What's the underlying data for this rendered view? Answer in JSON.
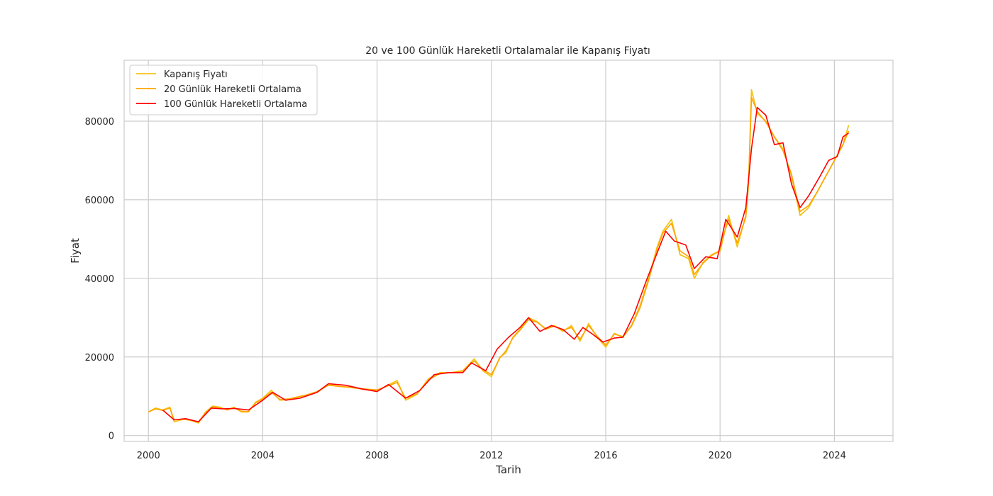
{
  "chart_data": {
    "type": "line",
    "title": "20 ve 100 Günlük Hareketli Ortalamalar ile Kapanış Fiyatı",
    "xlabel": "Tarih",
    "ylabel": "Fiyat",
    "xlim": [
      1999.15,
      2026.05
    ],
    "ylim": [
      -1500,
      95500
    ],
    "x_ticks": [
      2000,
      2004,
      2008,
      2012,
      2016,
      2020,
      2024
    ],
    "y_ticks": [
      0,
      20000,
      40000,
      60000,
      80000
    ],
    "grid": true,
    "legend_position": "upper-left",
    "series": [
      {
        "name": "Kapanış Fiyatı",
        "color": "#f5c518",
        "x": [
          2000.0,
          2000.25,
          2000.5,
          2000.75,
          2000.9,
          2001.25,
          2001.5,
          2001.75,
          2002.0,
          2002.25,
          2002.5,
          2002.75,
          2003.0,
          2003.25,
          2003.5,
          2003.75,
          2004.0,
          2004.3,
          2004.6,
          2004.9,
          2005.25,
          2005.5,
          2005.9,
          2006.3,
          2006.7,
          2007.1,
          2007.5,
          2008.0,
          2008.3,
          2008.7,
          2009.0,
          2009.4,
          2009.8,
          2010.2,
          2010.6,
          2011.0,
          2011.4,
          2011.7,
          2012.0,
          2012.3,
          2012.5,
          2012.75,
          2013.0,
          2013.3,
          2013.6,
          2013.9,
          2014.2,
          2014.5,
          2014.8,
          2015.1,
          2015.4,
          2015.7,
          2016.0,
          2016.3,
          2016.6,
          2016.9,
          2017.2,
          2017.5,
          2017.8,
          2018.0,
          2018.3,
          2018.6,
          2018.9,
          2019.1,
          2019.4,
          2019.7,
          2020.0,
          2020.1,
          2020.3,
          2020.6,
          2020.9,
          2021.0,
          2021.1,
          2021.3,
          2021.6,
          2021.9,
          2022.2,
          2022.5,
          2022.8,
          2023.1,
          2023.4,
          2023.7,
          2024.0,
          2024.3,
          2024.5
        ],
        "y": [
          6000,
          7000,
          6500,
          7200,
          3500,
          4200,
          3800,
          3200,
          6000,
          7500,
          7200,
          6500,
          7200,
          6000,
          6000,
          8500,
          9500,
          11500,
          9000,
          9200,
          9800,
          10200,
          11000,
          13000,
          12500,
          12200,
          11800,
          11500,
          12500,
          14000,
          9000,
          10500,
          14500,
          16000,
          16000,
          16500,
          19500,
          16500,
          15000,
          20000,
          21000,
          25000,
          27000,
          30000,
          29000,
          27000,
          28000,
          26500,
          28000,
          24000,
          28500,
          25000,
          22500,
          26000,
          25000,
          28000,
          33000,
          40000,
          48000,
          52000,
          55000,
          46000,
          45000,
          40000,
          44000,
          46000,
          47000,
          50000,
          56000,
          48000,
          56000,
          65000,
          88000,
          82000,
          80000,
          76000,
          73000,
          66000,
          56000,
          58000,
          62000,
          66000,
          70000,
          74000,
          79000
        ]
      },
      {
        "name": "20 Günlük Hareketli Ortalama",
        "color": "#ffa500",
        "x": [
          2000.0,
          2000.25,
          2000.5,
          2000.75,
          2000.9,
          2001.25,
          2001.5,
          2001.75,
          2002.0,
          2002.25,
          2002.5,
          2002.75,
          2003.0,
          2003.25,
          2003.5,
          2003.75,
          2004.0,
          2004.3,
          2004.6,
          2004.9,
          2005.25,
          2005.5,
          2005.9,
          2006.3,
          2006.7,
          2007.1,
          2007.5,
          2008.0,
          2008.3,
          2008.7,
          2009.0,
          2009.4,
          2009.8,
          2010.2,
          2010.6,
          2011.0,
          2011.4,
          2011.7,
          2012.0,
          2012.3,
          2012.5,
          2012.75,
          2013.0,
          2013.3,
          2013.6,
          2013.9,
          2014.2,
          2014.5,
          2014.8,
          2015.1,
          2015.4,
          2015.7,
          2016.0,
          2016.3,
          2016.6,
          2016.9,
          2017.2,
          2017.5,
          2017.8,
          2018.0,
          2018.3,
          2018.6,
          2018.9,
          2019.1,
          2019.4,
          2019.7,
          2020.0,
          2020.1,
          2020.3,
          2020.6,
          2020.9,
          2021.0,
          2021.1,
          2021.3,
          2021.6,
          2021.9,
          2022.2,
          2022.5,
          2022.8,
          2023.1,
          2023.4,
          2023.7,
          2024.0,
          2024.3,
          2024.5
        ],
        "y": [
          6000,
          6800,
          6400,
          7000,
          4000,
          4100,
          3900,
          3500,
          5800,
          7300,
          7100,
          6600,
          7000,
          6200,
          6100,
          8300,
          9300,
          11000,
          9200,
          9300,
          9900,
          10300,
          11200,
          12800,
          12500,
          12300,
          11900,
          11600,
          12400,
          13500,
          9500,
          10600,
          14200,
          15800,
          16000,
          16400,
          19000,
          16800,
          15500,
          19800,
          21500,
          24800,
          26800,
          29500,
          28800,
          27200,
          27800,
          26800,
          27500,
          24500,
          28000,
          25300,
          23000,
          25800,
          25200,
          27800,
          32500,
          39500,
          47500,
          51500,
          54000,
          47000,
          45500,
          41000,
          43800,
          45800,
          47000,
          50500,
          55000,
          49000,
          55500,
          64000,
          86000,
          82500,
          79800,
          76000,
          72500,
          66500,
          57000,
          58500,
          62000,
          66000,
          70000,
          74000,
          77500
        ]
      },
      {
        "name": "100 Günlük Hareketli Ortalama",
        "color": "#ff0000",
        "x": [
          2000.5,
          2000.9,
          2001.3,
          2001.75,
          2002.2,
          2002.6,
          2003.0,
          2003.5,
          2004.0,
          2004.35,
          2004.8,
          2005.3,
          2005.9,
          2006.3,
          2006.9,
          2007.5,
          2008.0,
          2008.4,
          2009.0,
          2009.5,
          2010.0,
          2010.5,
          2011.0,
          2011.3,
          2011.8,
          2012.2,
          2012.6,
          2013.0,
          2013.3,
          2013.7,
          2014.1,
          2014.5,
          2014.9,
          2015.2,
          2015.5,
          2015.9,
          2016.3,
          2016.6,
          2017.0,
          2017.4,
          2017.8,
          2018.1,
          2018.4,
          2018.8,
          2019.1,
          2019.5,
          2019.9,
          2020.2,
          2020.6,
          2020.9,
          2021.1,
          2021.3,
          2021.6,
          2021.9,
          2022.2,
          2022.5,
          2022.8,
          2023.1,
          2023.5,
          2023.8,
          2024.1,
          2024.3,
          2024.5
        ],
        "y": [
          6500,
          4000,
          4300,
          3500,
          7000,
          6800,
          6900,
          6500,
          9000,
          11000,
          9000,
          9500,
          11000,
          13200,
          12800,
          11800,
          11200,
          13000,
          9500,
          11500,
          15500,
          16000,
          16000,
          18500,
          16500,
          22000,
          25000,
          27500,
          30000,
          26500,
          28000,
          27000,
          24500,
          27500,
          26000,
          23800,
          24800,
          25000,
          31000,
          39000,
          46500,
          52000,
          49500,
          48500,
          42500,
          45500,
          45000,
          55000,
          50500,
          58000,
          73000,
          83500,
          81500,
          74000,
          74500,
          64000,
          58000,
          61000,
          66000,
          70000,
          71000,
          76000,
          77000
        ]
      }
    ]
  }
}
